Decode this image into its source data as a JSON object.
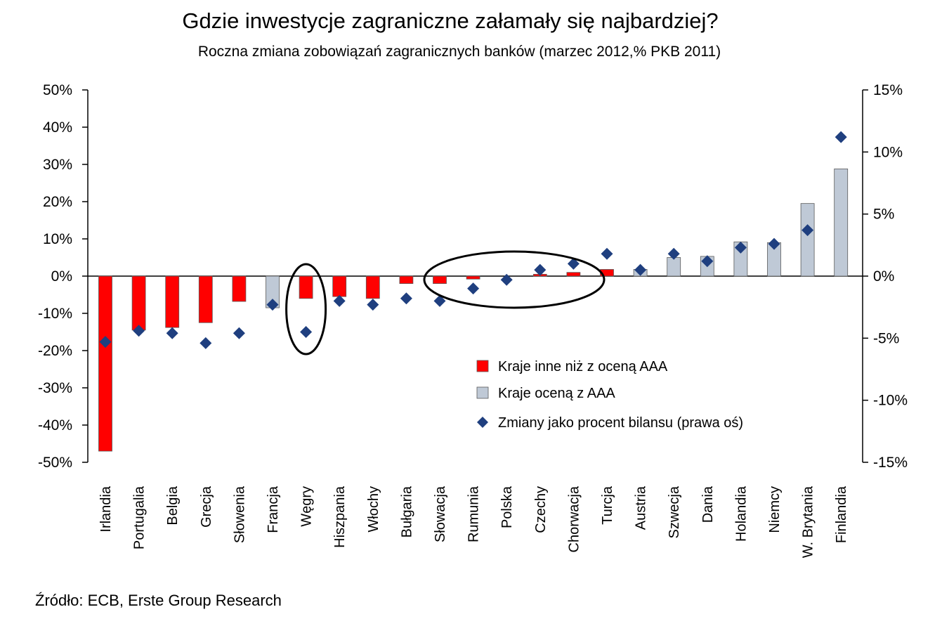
{
  "chart_data": {
    "type": "bar",
    "title": "Gdzie inwestycje zagraniczne załamały się najbardziej?",
    "subtitle": "Roczna zmiana zobowiązań zagranicznych banków (marzec 2012,% PKB 2011)",
    "source": "Źródło: ECB, Erste Group Research",
    "categories": [
      "Irlandia",
      "Portugalia",
      "Belgia",
      "Grecja",
      "Słowenia",
      "Francja",
      "Węgry",
      "Hiszpania",
      "Włochy",
      "Bułgaria",
      "Słowacja",
      "Rumunia",
      "Polska",
      "Czechy",
      "Chorwacja",
      "Turcja",
      "Austria",
      "Szwecja",
      "Dania",
      "Holandia",
      "Niemcy",
      "W. Brytania",
      "Finlandia"
    ],
    "y_left": {
      "ylim": [
        -50,
        50
      ],
      "ticks": [
        "50%",
        "40%",
        "30%",
        "20%",
        "10%",
        "0%",
        "-10%",
        "-20%",
        "-30%",
        "-40%",
        "-50%"
      ],
      "tick_values": [
        50,
        40,
        30,
        20,
        10,
        0,
        -10,
        -20,
        -30,
        -40,
        -50
      ]
    },
    "y_right": {
      "ylim": [
        -15,
        15
      ],
      "ticks": [
        "15%",
        "10%",
        "5%",
        "0%",
        "-5%",
        "-10%",
        "-15%"
      ],
      "tick_values": [
        15,
        10,
        5,
        0,
        -5,
        -10,
        -15
      ]
    },
    "series": [
      {
        "name": "Kraje inne niż z oceną AAA",
        "kind": "bar",
        "axis": "left",
        "color": "#ff0000",
        "values": [
          -47,
          -14.5,
          -13.8,
          -12.5,
          -6.8,
          null,
          -6,
          -5.5,
          -6,
          -2,
          -2,
          -0.8,
          0,
          0.5,
          1,
          1.8,
          null,
          null,
          null,
          null,
          null,
          null,
          null
        ]
      },
      {
        "name": "Kraje oceną z AAA",
        "kind": "bar",
        "axis": "left",
        "color": "#bfc9d6",
        "values": [
          null,
          null,
          null,
          null,
          null,
          -8.5,
          null,
          null,
          null,
          null,
          null,
          null,
          null,
          null,
          null,
          null,
          1.8,
          5,
          5.3,
          9.2,
          9,
          19.5,
          28.8
        ]
      },
      {
        "name": "Zmiany jako procent bilansu (prawa oś)",
        "kind": "scatter",
        "axis": "right",
        "color": "#1f3f7f",
        "values": [
          -5.3,
          -4.4,
          -4.6,
          -5.4,
          -4.6,
          -2.3,
          -4.5,
          -2,
          -2.3,
          -1.8,
          -2,
          -1,
          -0.3,
          0.5,
          1,
          1.8,
          0.5,
          1.8,
          1.2,
          2.3,
          2.6,
          3.7,
          11.2
        ]
      }
    ],
    "legend": {
      "placement": "center-right"
    },
    "annotations": [
      "ellipse around Węgry",
      "ellipse around Słowacja–Chorwacja"
    ],
    "grid": false
  }
}
